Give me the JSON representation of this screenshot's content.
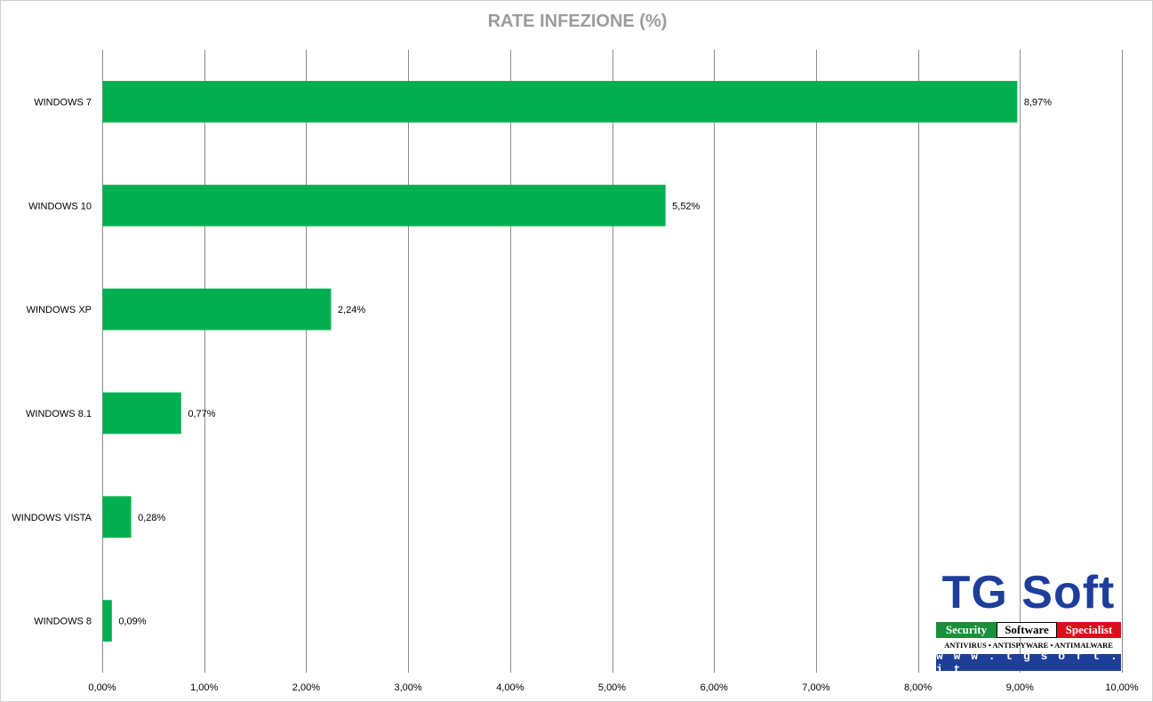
{
  "chart_data": {
    "type": "bar",
    "orientation": "horizontal",
    "title": "RATE INFEZIONE (%)",
    "categories": [
      "WINDOWS 7",
      "WINDOWS 10",
      "WINDOWS XP",
      "WINDOWS 8.1",
      "WINDOWS VISTA",
      "WINDOWS 8"
    ],
    "values": [
      8.97,
      5.52,
      2.24,
      0.77,
      0.28,
      0.09
    ],
    "value_labels": [
      "8,97%",
      "5,52%",
      "2,24%",
      "0,77%",
      "0,28%",
      "0,09%"
    ],
    "xlim": [
      0,
      10
    ],
    "x_ticks": [
      0,
      1,
      2,
      3,
      4,
      5,
      6,
      7,
      8,
      9,
      10
    ],
    "x_tick_labels": [
      "0,00%",
      "1,00%",
      "2,00%",
      "3,00%",
      "4,00%",
      "5,00%",
      "6,00%",
      "7,00%",
      "8,00%",
      "9,00%",
      "10,00%"
    ],
    "xlabel": "",
    "ylabel": "",
    "grid": "vertical",
    "legend": "none",
    "bar_color": "#00b050",
    "grid_color": "#8c8c8c"
  },
  "logo": {
    "name": "TG Soft",
    "tagline_1": "Security",
    "tagline_2": "Software",
    "tagline_3": "Specialist",
    "subtitle": "ANTIVIRUS • ANTISPYWARE • ANTIMALWARE",
    "url": "w w w . t g s o f t . i t"
  }
}
